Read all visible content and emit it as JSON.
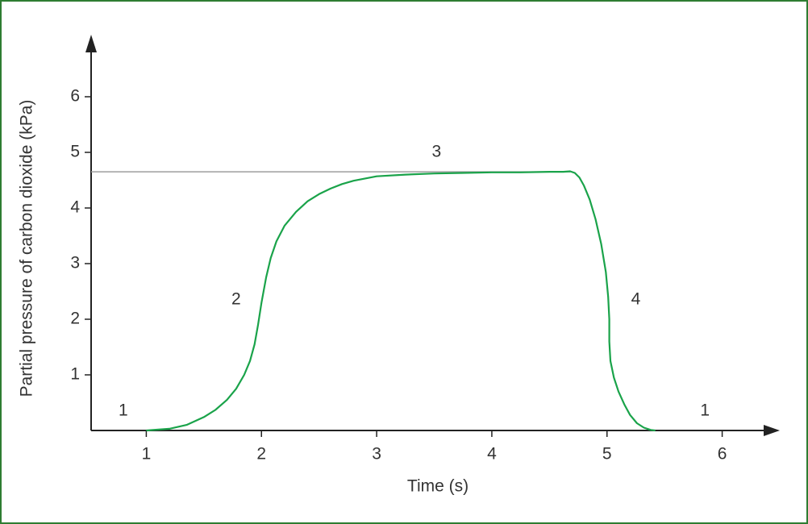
{
  "chart_data": {
    "type": "line",
    "x_label": "Time (s)",
    "y_label": "Partial pressure of carbon dioxide (kPa)",
    "xlim": [
      0.5,
      6.5
    ],
    "ylim": [
      0,
      7
    ],
    "xticks": [
      1,
      2,
      3,
      4,
      5,
      6
    ],
    "yticks": [
      1,
      2,
      3,
      4,
      5,
      6
    ],
    "series": [
      {
        "color": "#1aa34a",
        "x": [
          1.0,
          1.2,
          1.35,
          1.5,
          1.6,
          1.7,
          1.78,
          1.85,
          1.9,
          1.94,
          1.97,
          2.0,
          2.04,
          2.08,
          2.13,
          2.2,
          2.3,
          2.4,
          2.5,
          2.6,
          2.7,
          2.8,
          2.9,
          3.0,
          3.25,
          3.5,
          3.75,
          4.0,
          4.25,
          4.5,
          4.62,
          4.68,
          4.72,
          4.76,
          4.8,
          4.85,
          4.9,
          4.95,
          4.99,
          5.01,
          5.02,
          5.02,
          5.03,
          5.06,
          5.1,
          5.15,
          5.2,
          5.26,
          5.32,
          5.38,
          5.42
        ],
        "y": [
          0.0,
          0.03,
          0.1,
          0.24,
          0.37,
          0.55,
          0.75,
          1.0,
          1.25,
          1.55,
          1.9,
          2.3,
          2.75,
          3.1,
          3.4,
          3.68,
          3.93,
          4.12,
          4.25,
          4.35,
          4.43,
          4.49,
          4.53,
          4.57,
          4.6,
          4.62,
          4.63,
          4.64,
          4.64,
          4.65,
          4.65,
          4.66,
          4.63,
          4.55,
          4.4,
          4.15,
          3.8,
          3.35,
          2.85,
          2.4,
          2.0,
          1.6,
          1.25,
          0.95,
          0.7,
          0.47,
          0.28,
          0.13,
          0.05,
          0.01,
          0.0
        ]
      }
    ],
    "reference_line": {
      "value": 4.65,
      "x_end": 4.68,
      "color": "#9e9e9e"
    },
    "annotations": [
      {
        "text": "1",
        "x": 0.8,
        "y": 0.35
      },
      {
        "text": "2",
        "x": 1.78,
        "y": 2.35
      },
      {
        "text": "3",
        "x": 3.52,
        "y": 5.0
      },
      {
        "text": "4",
        "x": 5.25,
        "y": 2.35
      },
      {
        "text": "1",
        "x": 5.85,
        "y": 0.35
      }
    ]
  }
}
